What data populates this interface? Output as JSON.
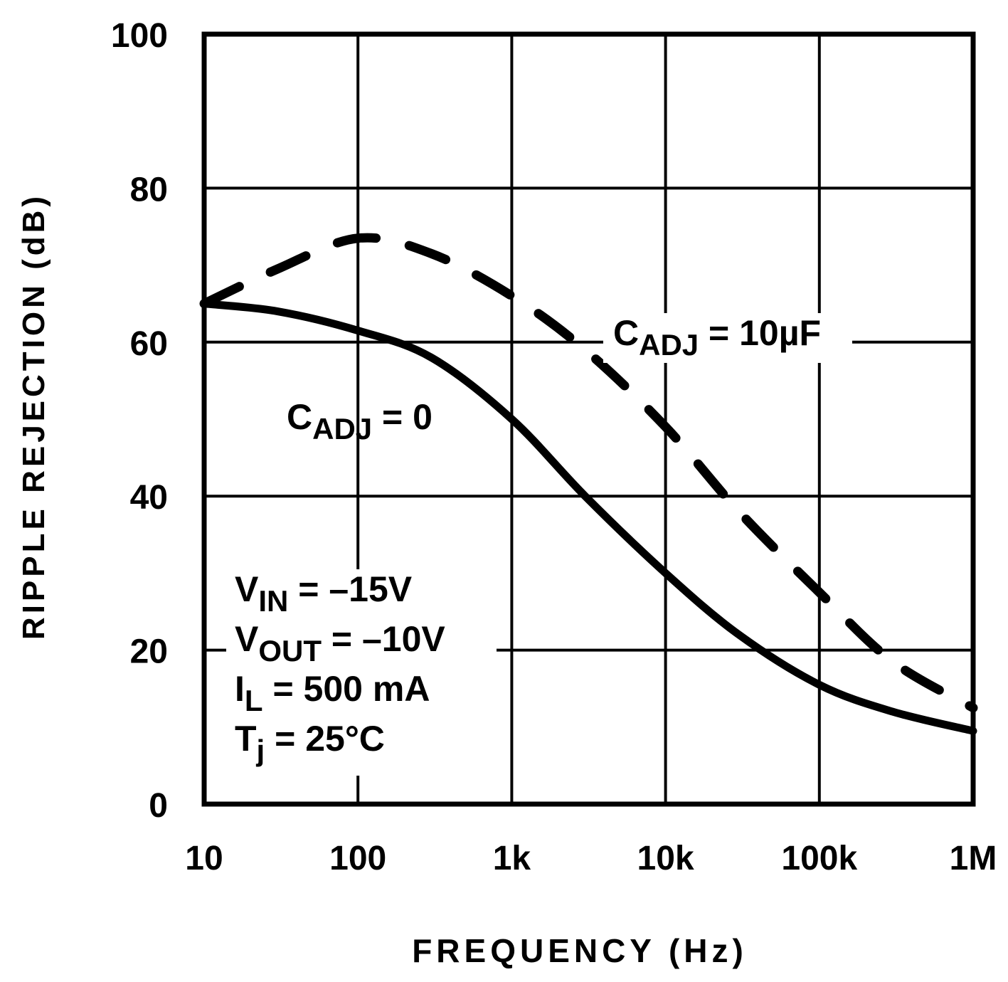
{
  "chart_data": {
    "type": "line",
    "title": "",
    "xlabel": "FREQUENCY (Hz)",
    "ylabel": "RIPPLE REJECTION (dB)",
    "xscale": "log",
    "xlim": [
      10,
      1000000
    ],
    "ylim": [
      0,
      100
    ],
    "grid": true,
    "x_ticks": [
      10,
      100,
      1000,
      10000,
      100000,
      1000000
    ],
    "x_tick_labels": [
      "10",
      "100",
      "1k",
      "10k",
      "100k",
      "1M"
    ],
    "y_ticks": [
      0,
      20,
      40,
      60,
      80,
      100
    ],
    "y_tick_labels": [
      "0",
      "20",
      "40",
      "60",
      "80",
      "100"
    ],
    "series": [
      {
        "name": "CADJ = 0",
        "label_main": "C",
        "label_sub": "ADJ",
        "label_rest": " = 0",
        "style": "solid",
        "color": "#000000",
        "x": [
          10,
          30,
          100,
          300,
          1000,
          3000,
          10000,
          30000,
          100000,
          300000,
          1000000
        ],
        "y": [
          65,
          64,
          61.5,
          58,
          50,
          40,
          30,
          22,
          15.5,
          12,
          9.5
        ]
      },
      {
        "name": "CADJ = 10µF",
        "label_main": "C",
        "label_sub": "ADJ",
        "label_rest": " = 10µF",
        "style": "dashed",
        "color": "#000000",
        "x": [
          10,
          30,
          100,
          300,
          1000,
          3000,
          10000,
          30000,
          100000,
          300000,
          1000000
        ],
        "y": [
          65,
          69.5,
          73.5,
          71.5,
          66,
          59,
          49,
          38,
          27.5,
          18.5,
          12.5
        ]
      }
    ],
    "annotations": [
      {
        "main": "V",
        "sub": "IN",
        "rest": " = –15V"
      },
      {
        "main": "V",
        "sub": "OUT",
        "rest": " = –10V"
      },
      {
        "main": "I",
        "sub": "L",
        "rest": " = 500 mA"
      },
      {
        "main": "T",
        "sub": "j",
        "rest": " = 25°C"
      }
    ]
  }
}
